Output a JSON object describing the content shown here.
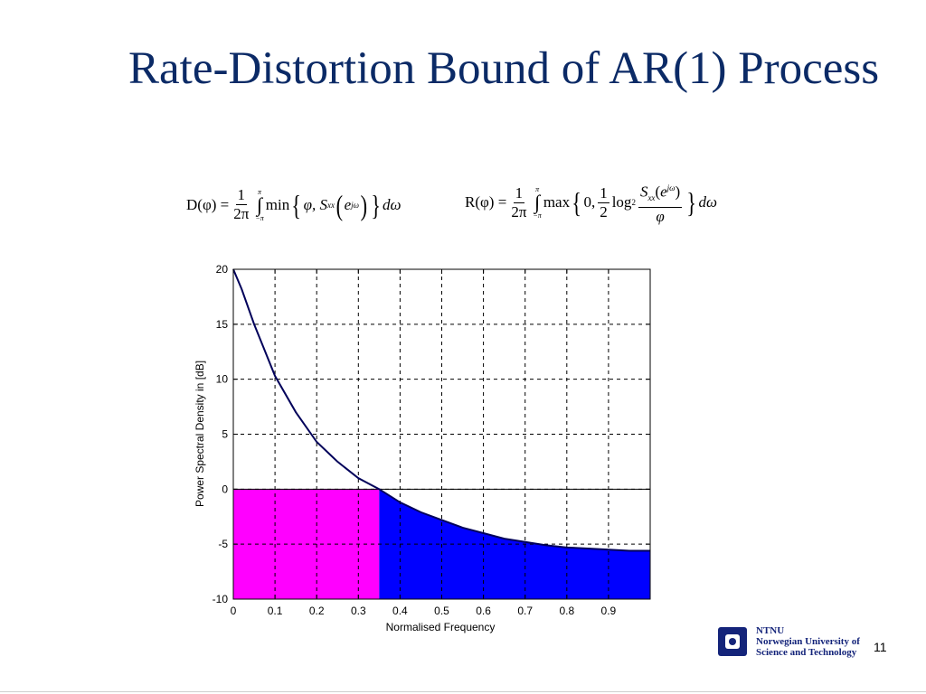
{
  "slide": {
    "title": "Rate-Distortion Bound of AR(1) Process",
    "page_number": "11",
    "logo_lines": [
      "NTNU",
      "Norwegian University of",
      "Science and Technology"
    ]
  },
  "formulas": {
    "distortion": {
      "lhs": "D(φ) =",
      "fraction_num": "1",
      "fraction_den": "2π",
      "upper_limit": "π",
      "lower_limit": "−π",
      "operator": "min",
      "args": "φ, S",
      "subscript": "xx",
      "inner": "e",
      "superscript": "jω",
      "differential": "dω"
    },
    "rate": {
      "lhs": "R(φ) =",
      "fraction_num": "1",
      "fraction_den": "2π",
      "upper_limit": "π",
      "lower_limit": "−π",
      "operator": "max",
      "args": "0,",
      "half_num": "1",
      "half_den": "2",
      "log": "log",
      "log_base": "2",
      "ratio_num": "S",
      "subscript": "xx",
      "inner": "e",
      "superscript": "jω",
      "ratio_den": "φ",
      "differential": "dω"
    }
  },
  "chart_data": {
    "type": "area",
    "xlabel": "Normalised Frequency",
    "ylabel": "Power Spectral Density in [dB]",
    "xlim": [
      0,
      1
    ],
    "ylim": [
      -10,
      20
    ],
    "xticks": [
      "0",
      "0.1",
      "0.2",
      "0.3",
      "0.4",
      "0.5",
      "0.6",
      "0.7",
      "0.8",
      "0.9"
    ],
    "yticks": [
      "-10",
      "-5",
      "0",
      "5",
      "10",
      "15",
      "20"
    ],
    "grid": true,
    "threshold_db": 0,
    "crossing_x": 0.35,
    "series": [
      {
        "x": [
          0,
          0.02,
          0.05,
          0.1,
          0.15,
          0.2,
          0.25,
          0.3,
          0.35,
          0.4,
          0.45,
          0.5,
          0.55,
          0.6,
          0.65,
          0.7,
          0.75,
          0.8,
          0.85,
          0.9,
          0.95,
          1.0
        ],
        "y": [
          20,
          18.2,
          15.0,
          10.3,
          7.0,
          4.3,
          2.5,
          1.0,
          0,
          -1.2,
          -2.1,
          -2.8,
          -3.5,
          -4.0,
          -4.5,
          -4.8,
          -5.1,
          -5.3,
          -5.4,
          -5.5,
          -5.6,
          -5.6
        ]
      }
    ],
    "colors": {
      "curve": "#00005a",
      "below_threshold_fill": "#0000ff",
      "threshold_rect_fill": "#ff00ff",
      "grid": "#000000"
    }
  }
}
